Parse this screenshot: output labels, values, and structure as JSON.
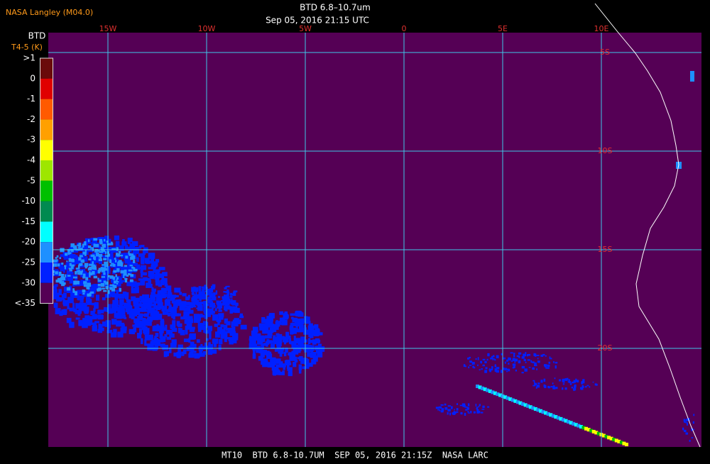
{
  "header": {
    "org": "NASA Langley (M04.0)",
    "title": "BTD 6.8–10.7um",
    "datetime": "Sep 05, 2016 21:15 UTC"
  },
  "legend": {
    "title": "BTD",
    "unit": "T4-5 (K)",
    "labels": [
      ">1",
      "0",
      "-1",
      "-2",
      "-3",
      "-4",
      "-5",
      "-10",
      "-15",
      "-20",
      "-25",
      "-30",
      "<-35"
    ],
    "colors": [
      "#6a0a0a",
      "#e00000",
      "#ff5a00",
      "#ffa000",
      "#ffff00",
      "#9ee600",
      "#00c000",
      "#008a50",
      "#00ffff",
      "#1e90ff",
      "#0020ff",
      "#550055"
    ]
  },
  "map": {
    "lon_labels": [
      "15W",
      "10W",
      "5W",
      "0",
      "5E",
      "10E"
    ],
    "lat_labels": [
      "5S",
      "10S",
      "15S",
      "20S"
    ]
  },
  "footer": "MT10  BTD 6.8-10.7UM  SEP 05, 2016 21:15Z  NASA LARC"
}
